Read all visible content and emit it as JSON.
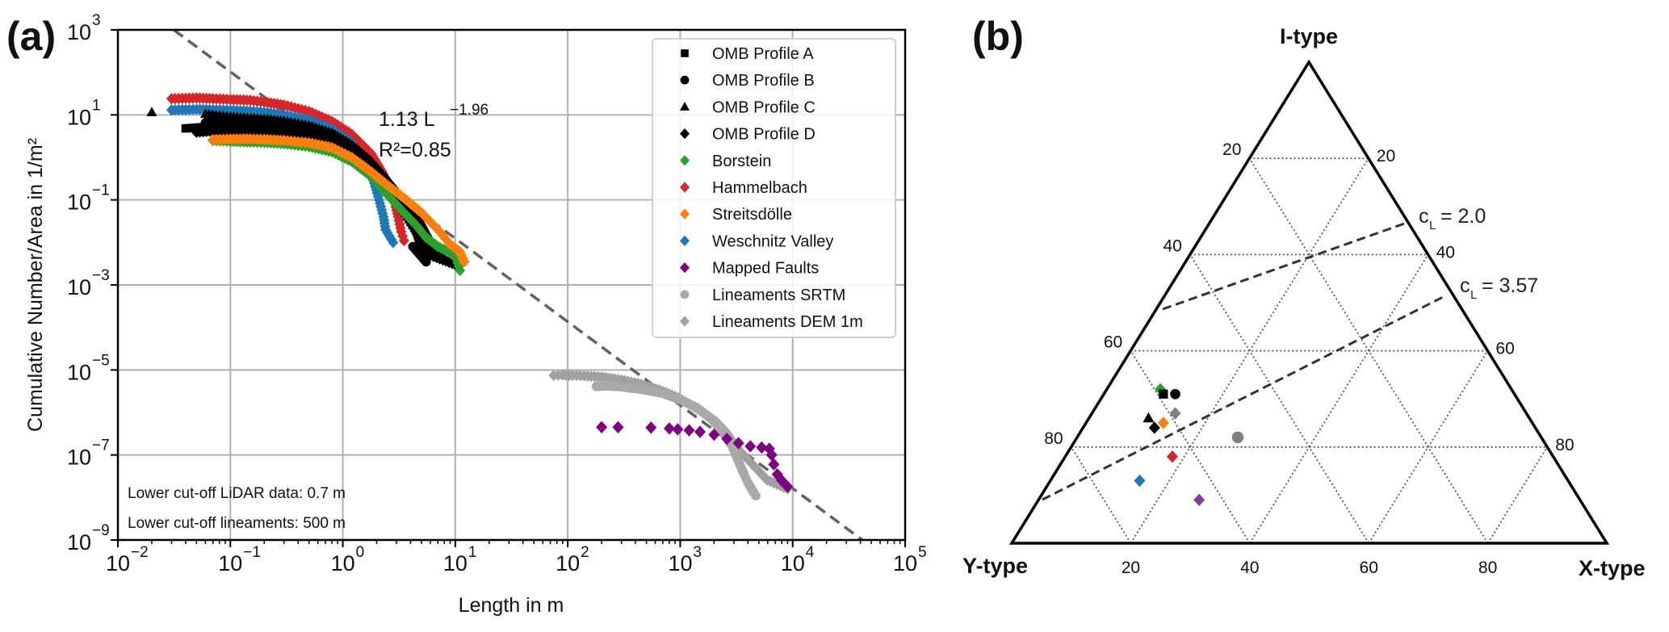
{
  "panel_a_label": "(a)",
  "panel_b_label": "(b)",
  "chart_data": [
    {
      "type": "scatter",
      "panel": "a",
      "xscale": "log",
      "yscale": "log",
      "xlim": [
        0.01,
        100000
      ],
      "ylim": [
        1e-09,
        1000
      ],
      "xlabel": "Length in m",
      "ylabel": "Cumulative Number/Area in 1/m²",
      "grid": true,
      "x_ticks": [
        {
          "base": "10",
          "exp": "−2",
          "value": 0.01
        },
        {
          "base": "10",
          "exp": "−1",
          "value": 0.1
        },
        {
          "base": "10",
          "exp": "0",
          "value": 1
        },
        {
          "base": "10",
          "exp": "1",
          "value": 10
        },
        {
          "base": "10",
          "exp": "2",
          "value": 100
        },
        {
          "base": "10",
          "exp": "3",
          "value": 1000
        },
        {
          "base": "10",
          "exp": "4",
          "value": 10000
        },
        {
          "base": "10",
          "exp": "5",
          "value": 100000
        }
      ],
      "y_ticks": [
        {
          "base": "10",
          "exp": "3",
          "value": 1000
        },
        {
          "base": "10",
          "exp": "1",
          "value": 10
        },
        {
          "base": "10",
          "exp": "−1",
          "value": 0.1
        },
        {
          "base": "10",
          "exp": "−3",
          "value": 0.001
        },
        {
          "base": "10",
          "exp": "−5",
          "value": 1e-05
        },
        {
          "base": "10",
          "exp": "−7",
          "value": 1e-07
        },
        {
          "base": "10",
          "exp": "−9",
          "value": 1e-09
        }
      ],
      "legend_position": "top-right",
      "fit": {
        "label_main": "1.13 L",
        "label_exp": "−1.96",
        "r2_label": "R²=0.85",
        "coefficient": 1.13,
        "exponent": -1.96,
        "r2": 0.85,
        "color": "#606060",
        "style": "dashed"
      },
      "annotations": [
        "Lower cut-off LiDAR data: 0.7 m",
        "Lower cut-off lineaments: 500 m"
      ],
      "series": [
        {
          "name": "OMB Profile A",
          "marker": "square",
          "color": "#000000",
          "points": [
            [
              0.04,
              4.8
            ],
            [
              0.06,
              5.2
            ],
            [
              0.08,
              5.0
            ],
            [
              0.1,
              4.9
            ],
            [
              0.15,
              4.7
            ],
            [
              0.2,
              4.5
            ],
            [
              0.3,
              4.1
            ],
            [
              0.5,
              3.4
            ],
            [
              0.8,
              2.4
            ],
            [
              1.2,
              1.3
            ],
            [
              1.8,
              0.55
            ],
            [
              2.5,
              0.2
            ],
            [
              3.2,
              0.08
            ],
            [
              4,
              0.03
            ],
            [
              5,
              0.012
            ],
            [
              6,
              0.006
            ]
          ]
        },
        {
          "name": "OMB Profile B",
          "marker": "circle",
          "color": "#000000",
          "points": [
            [
              0.06,
              6.5
            ],
            [
              0.08,
              6.3
            ],
            [
              0.1,
              6.2
            ],
            [
              0.15,
              6.0
            ],
            [
              0.2,
              5.8
            ],
            [
              0.3,
              5.3
            ],
            [
              0.5,
              4.4
            ],
            [
              0.8,
              3.1
            ],
            [
              1.2,
              1.7
            ],
            [
              1.8,
              0.7
            ],
            [
              2.5,
              0.25
            ],
            [
              3.2,
              0.1
            ],
            [
              4,
              0.04
            ],
            [
              4.6,
              0.015
            ],
            [
              5.5,
              0.0035
            ],
            [
              4.2,
              0.008
            ]
          ]
        },
        {
          "name": "OMB Profile C",
          "marker": "triangle",
          "color": "#000000",
          "points": [
            [
              0.02,
              11.5
            ],
            [
              0.06,
              10.5
            ],
            [
              0.1,
              9.0
            ],
            [
              0.2,
              8.0
            ],
            [
              0.3,
              7.2
            ],
            [
              0.5,
              5.6
            ],
            [
              0.8,
              3.8
            ],
            [
              1.2,
              2.0
            ],
            [
              1.8,
              0.8
            ],
            [
              2.5,
              0.3
            ],
            [
              3.5,
              0.1
            ],
            [
              5,
              0.03
            ],
            [
              6.5,
              0.008
            ],
            [
              8,
              0.004
            ],
            [
              9.5,
              0.0035
            ]
          ]
        },
        {
          "name": "OMB Profile D",
          "marker": "diamond",
          "color": "#000000",
          "points": [
            [
              0.05,
              3.9
            ],
            [
              0.07,
              4.2
            ],
            [
              0.1,
              4.0
            ],
            [
              0.15,
              3.9
            ],
            [
              0.2,
              3.7
            ],
            [
              0.3,
              3.4
            ],
            [
              0.5,
              2.9
            ],
            [
              0.8,
              2.1
            ],
            [
              1.2,
              1.2
            ],
            [
              1.8,
              0.5
            ],
            [
              2.5,
              0.17
            ],
            [
              3.3,
              0.07
            ],
            [
              4.2,
              0.025
            ],
            [
              5,
              0.01
            ],
            [
              6,
              0.005
            ],
            [
              10,
              0.003
            ]
          ]
        },
        {
          "name": "Borstein",
          "marker": "diamond",
          "color": "#2ca02c",
          "points": [
            [
              0.07,
              2.5
            ],
            [
              0.1,
              2.4
            ],
            [
              0.15,
              2.3
            ],
            [
              0.2,
              2.25
            ],
            [
              0.3,
              2.1
            ],
            [
              0.5,
              1.8
            ],
            [
              0.8,
              1.35
            ],
            [
              1.2,
              0.8
            ],
            [
              1.8,
              0.35
            ],
            [
              2.5,
              0.13
            ],
            [
              3.5,
              0.05
            ],
            [
              4.5,
              0.025
            ],
            [
              5.5,
              0.013
            ],
            [
              7,
              0.008
            ],
            [
              10,
              0.005
            ],
            [
              11,
              0.0022
            ]
          ]
        },
        {
          "name": "Hammelbach",
          "marker": "diamond",
          "color": "#d62728",
          "points": [
            [
              0.03,
              24
            ],
            [
              0.05,
              25
            ],
            [
              0.07,
              24
            ],
            [
              0.1,
              23
            ],
            [
              0.15,
              22
            ],
            [
              0.2,
              20
            ],
            [
              0.3,
              17
            ],
            [
              0.5,
              12
            ],
            [
              0.8,
              7
            ],
            [
              1.2,
              3.5
            ],
            [
              1.8,
              1.2
            ],
            [
              2.3,
              0.4
            ],
            [
              2.8,
              0.12
            ],
            [
              3.1,
              0.04
            ],
            [
              3.3,
              0.018
            ],
            [
              3.5,
              0.011
            ]
          ]
        },
        {
          "name": "Streitsdölle",
          "marker": "diamond",
          "color": "#ff7f0e",
          "points": [
            [
              0.07,
              2.6
            ],
            [
              0.1,
              2.7
            ],
            [
              0.15,
              2.7
            ],
            [
              0.2,
              2.65
            ],
            [
              0.3,
              2.5
            ],
            [
              0.5,
              2.2
            ],
            [
              0.8,
              1.7
            ],
            [
              1.2,
              1.0
            ],
            [
              1.8,
              0.45
            ],
            [
              2.5,
              0.22
            ],
            [
              3.5,
              0.11
            ],
            [
              5,
              0.05
            ],
            [
              7,
              0.02
            ],
            [
              9,
              0.009
            ],
            [
              11,
              0.006
            ],
            [
              12,
              0.0035
            ]
          ]
        },
        {
          "name": "Weschnitz Valley",
          "marker": "diamond",
          "color": "#1f77b4",
          "points": [
            [
              0.03,
              13
            ],
            [
              0.05,
              13.5
            ],
            [
              0.07,
              13.2
            ],
            [
              0.1,
              12.8
            ],
            [
              0.15,
              12.2
            ],
            [
              0.2,
              11.5
            ],
            [
              0.3,
              10
            ],
            [
              0.5,
              7.5
            ],
            [
              0.8,
              4.6
            ],
            [
              1.2,
              2.2
            ],
            [
              1.6,
              0.8
            ],
            [
              1.9,
              0.25
            ],
            [
              2.1,
              0.1
            ],
            [
              2.3,
              0.04
            ],
            [
              2.4,
              0.02
            ],
            [
              2.8,
              0.01
            ]
          ]
        },
        {
          "name": "Mapped Faults",
          "marker": "diamond",
          "color": "#7f007f",
          "points": [
            [
              200,
              4.5e-07
            ],
            [
              280,
              4.5e-07
            ],
            [
              550,
              4.4e-07
            ],
            [
              800,
              4.2e-07
            ],
            [
              950,
              4e-07
            ],
            [
              1200,
              3.8e-07
            ],
            [
              1500,
              3.5e-07
            ],
            [
              2000,
              3e-07
            ],
            [
              2600,
              2.4e-07
            ],
            [
              3300,
              1.9e-07
            ],
            [
              4200,
              1.6e-07
            ],
            [
              5300,
              1.5e-07
            ],
            [
              6200,
              1.4e-07
            ],
            [
              6500,
              1e-07
            ],
            [
              6800,
              6e-08
            ],
            [
              7300,
              3.5e-08
            ],
            [
              8000,
              2.5e-08
            ],
            [
              9000,
              1.8e-08
            ]
          ]
        },
        {
          "name": "Lineaments SRTM",
          "marker": "circle",
          "color": "#a9a9a9",
          "points": [
            [
              180,
              4.1e-06
            ],
            [
              220,
              4.2e-06
            ],
            [
              300,
              4e-06
            ],
            [
              450,
              3.5e-06
            ],
            [
              700,
              2.8e-06
            ],
            [
              1000,
              2e-06
            ],
            [
              1400,
              1.3e-06
            ],
            [
              1900,
              7e-07
            ],
            [
              2400,
              3.5e-07
            ],
            [
              2900,
              1.6e-07
            ],
            [
              3300,
              7e-08
            ],
            [
              3700,
              3.5e-08
            ],
            [
              4000,
              2.2e-08
            ],
            [
              4700,
              1.1e-08
            ]
          ]
        },
        {
          "name": "Lineaments DEM 1m",
          "marker": "diamond",
          "color": "#a0a0a0",
          "points": [
            [
              75,
              7.5e-06
            ],
            [
              90,
              7.6e-06
            ],
            [
              110,
              7.5e-06
            ],
            [
              140,
              7.3e-06
            ],
            [
              200,
              6.8e-06
            ],
            [
              300,
              5.8e-06
            ],
            [
              450,
              4.6e-06
            ],
            [
              650,
              3.4e-06
            ],
            [
              900,
              2.4e-06
            ],
            [
              1200,
              1.6e-06
            ],
            [
              1600,
              1e-06
            ],
            [
              2100,
              6e-07
            ],
            [
              2600,
              3.3e-07
            ],
            [
              3100,
              1.6e-07
            ],
            [
              5900,
              2.6e-08
            ],
            [
              9000,
              1.6e-08
            ]
          ]
        }
      ]
    },
    {
      "type": "ternary",
      "panel": "b",
      "vertices": {
        "top": "I-type",
        "left": "Y-type",
        "right": "X-type"
      },
      "grid_values": [
        20,
        40,
        60,
        80
      ],
      "bottom_ticks": [
        "20",
        "40",
        "60",
        "80"
      ],
      "left_ticks": [
        "20",
        "40",
        "60",
        "80"
      ],
      "right_ticks": [
        "80",
        "60",
        "40",
        "20"
      ],
      "cl_lines": [
        {
          "label_c": "c",
          "label_sub": "L",
          "label_rest": " = 2.0",
          "value": 2.0
        },
        {
          "label_c": "c",
          "label_sub": "L",
          "label_rest": " = 3.57",
          "value": 3.57
        }
      ],
      "points": [
        {
          "series": "Borstein",
          "marker": "diamond",
          "color": "#2ca02c",
          "I": 32,
          "Y": 59,
          "X": 9
        },
        {
          "series": "OMB Profile A",
          "marker": "square",
          "color": "#000000",
          "I": 31,
          "Y": 59,
          "X": 10
        },
        {
          "series": "OMB Profile B",
          "marker": "circle",
          "color": "#000000",
          "I": 31,
          "Y": 57,
          "X": 12
        },
        {
          "series": "Lineaments DEM 1m",
          "marker": "diamond",
          "color": "#808080",
          "I": 27,
          "Y": 59,
          "X": 14
        },
        {
          "series": "OMB Profile C",
          "marker": "triangle",
          "color": "#000000",
          "I": 26,
          "Y": 64,
          "X": 10
        },
        {
          "series": "OMB Profile D",
          "marker": "diamond",
          "color": "#000000",
          "I": 24,
          "Y": 64,
          "X": 12
        },
        {
          "series": "Streitsdölle",
          "marker": "diamond",
          "color": "#ff7f0e",
          "I": 25,
          "Y": 62,
          "X": 13
        },
        {
          "series": "Lineaments SRTM",
          "marker": "circle",
          "color": "#808080",
          "I": 22,
          "Y": 51,
          "X": 27
        },
        {
          "series": "Hammelbach",
          "marker": "diamond",
          "color": "#d62728",
          "I": 18,
          "Y": 64,
          "X": 18
        },
        {
          "series": "Weschnitz Valley",
          "marker": "diamond",
          "color": "#1f77b4",
          "I": 13,
          "Y": 72,
          "X": 15
        },
        {
          "series": "Mapped Faults",
          "marker": "diamond",
          "color": "#7f3f98",
          "I": 9,
          "Y": 64,
          "X": 27
        }
      ]
    }
  ]
}
